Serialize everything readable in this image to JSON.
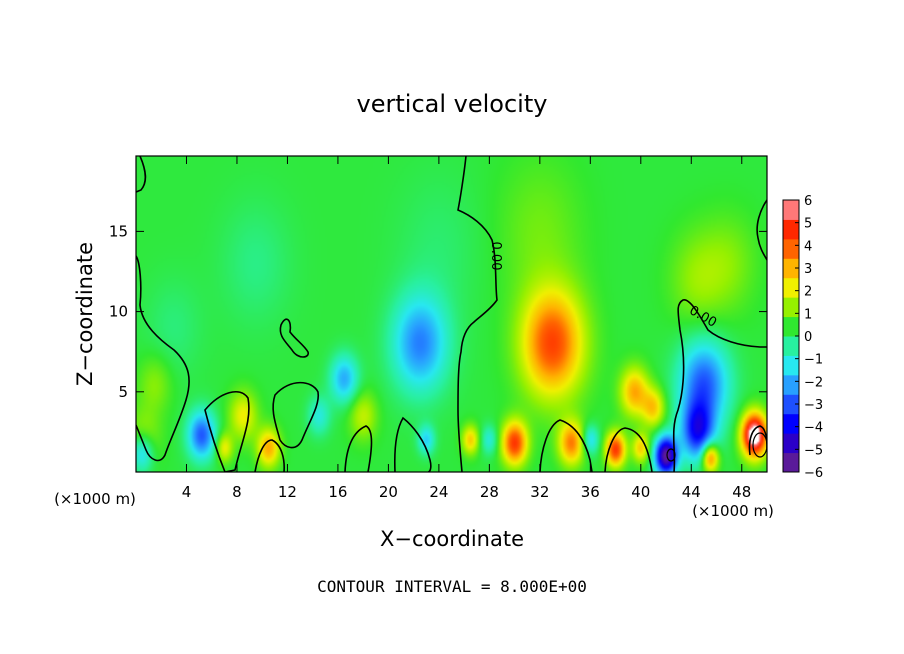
{
  "chart_data": {
    "type": "heatmap",
    "title": "vertical velocity",
    "xlabel": "X−coordinate",
    "ylabel": "Z−coordinate",
    "x_unit_left": "(×1000 m)",
    "x_unit_right": "(×1000 m)",
    "xlim": [
      0,
      50
    ],
    "ylim": [
      0,
      19.7
    ],
    "x_ticks": [
      4,
      8,
      12,
      16,
      20,
      24,
      28,
      32,
      36,
      40,
      44,
      48
    ],
    "y_ticks": [
      5,
      10,
      15
    ],
    "footer": "CONTOUR INTERVAL = 8.000E+00",
    "contour_label": "0.00",
    "colorbar": {
      "min": -6,
      "max": 6,
      "tick_labels": [
        "6",
        "5",
        "4",
        "3",
        "2",
        "1",
        "0",
        "−1",
        "−2",
        "−3",
        "−4",
        "−5",
        "−6"
      ],
      "colors": [
        "#5a1a9a",
        "#2b00c8",
        "#0000ff",
        "#1e50ff",
        "#28a0ff",
        "#28e8f0",
        "#28f0a0",
        "#30e830",
        "#96f000",
        "#f0f000",
        "#ffb400",
        "#ff6400",
        "#ff2800",
        "#ff7878"
      ]
    },
    "features": [
      {
        "x": 1.5,
        "z": 5.5,
        "w": 0.95,
        "sz": 1.2
      },
      {
        "x": 0.6,
        "z": 2.1,
        "w": 1.2,
        "sz": 1.2
      },
      {
        "x": 5.2,
        "z": 2.3,
        "w": -3.5,
        "sz": 1.0
      },
      {
        "x": 0.5,
        "z": 1.2,
        "w": -2.5,
        "sz": 0.8
      },
      {
        "x": 8.5,
        "z": 3.5,
        "w": 2.0,
        "sz": 1.0
      },
      {
        "x": 10.5,
        "z": 1.5,
        "w": 3.0,
        "sz": 0.8
      },
      {
        "x": 7.0,
        "z": 1.5,
        "w": 2.0,
        "sz": 0.6
      },
      {
        "x": 22.5,
        "z": 8.0,
        "w": -3.0,
        "sz": 2.0
      },
      {
        "x": 16.5,
        "z": 5.8,
        "w": -2.5,
        "sz": 1.0
      },
      {
        "x": 18.0,
        "z": 3.5,
        "w": 1.5,
        "sz": 1.0
      },
      {
        "x": 23.0,
        "z": 2.0,
        "w": -2.0,
        "sz": 0.6
      },
      {
        "x": 14.5,
        "z": 3.5,
        "w": -1.5,
        "sz": 0.8
      },
      {
        "x": 33.0,
        "z": 8.0,
        "w": 4.3,
        "sz": 2.2
      },
      {
        "x": 30.0,
        "z": 1.8,
        "w": 4.5,
        "sz": 0.9
      },
      {
        "x": 34.5,
        "z": 1.8,
        "w": 3.5,
        "sz": 0.9
      },
      {
        "x": 38.0,
        "z": 1.4,
        "w": 4.5,
        "sz": 0.7
      },
      {
        "x": 39.5,
        "z": 5.0,
        "w": 3.0,
        "sz": 1.0
      },
      {
        "x": 41.0,
        "z": 4.0,
        "w": 2.5,
        "sz": 0.8
      },
      {
        "x": 45.0,
        "z": 5.5,
        "w": -3.5,
        "sz": 1.8
      },
      {
        "x": 44.5,
        "z": 2.5,
        "w": -4.0,
        "sz": 1.2
      },
      {
        "x": 42.0,
        "z": 1.0,
        "w": -6.5,
        "sz": 0.8
      },
      {
        "x": 45.5,
        "z": 0.9,
        "w": 4.0,
        "sz": 0.6
      },
      {
        "x": 49.0,
        "z": 2.3,
        "w": 7.0,
        "sz": 0.9
      },
      {
        "x": 44.5,
        "z": 12.0,
        "w": 1.0,
        "sz": 2.0
      },
      {
        "x": 47.0,
        "z": 13.0,
        "w": 0.8,
        "sz": 2.0
      },
      {
        "x": 26.5,
        "z": 2.0,
        "w": 2.5,
        "sz": 0.6
      },
      {
        "x": 28.0,
        "z": 2.0,
        "w": -1.5,
        "sz": 0.6
      },
      {
        "x": 36.0,
        "z": 2.0,
        "w": -2.0,
        "sz": 0.6
      },
      {
        "x": 40.0,
        "z": 1.5,
        "w": 2.5,
        "sz": 0.6
      },
      {
        "x": 9.5,
        "z": 13.0,
        "w": -0.6,
        "sz": 2.5
      },
      {
        "x": 24.0,
        "z": 14.0,
        "w": -0.4,
        "sz": 3.0
      },
      {
        "x": 32.0,
        "z": 15.0,
        "w": 0.7,
        "sz": 3.0
      },
      {
        "x": 3.0,
        "z": 9.0,
        "w": -0.5,
        "sz": 2.0
      }
    ]
  }
}
